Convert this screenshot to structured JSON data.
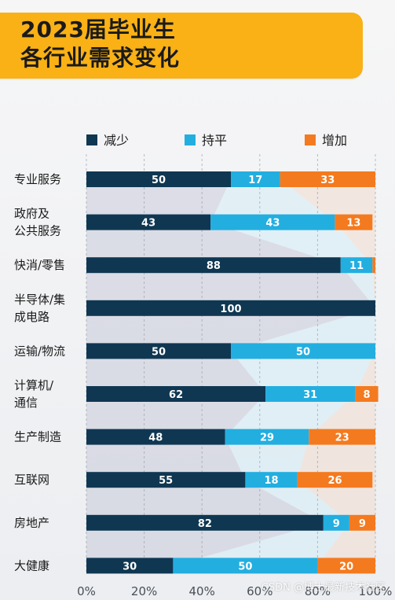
{
  "header": {
    "title_line1": "2023届毕业生",
    "title_line2": "各行业需求变化"
  },
  "colors": {
    "decrease": "#0f3752",
    "flat": "#23aee0",
    "increase": "#f47a1f",
    "banner": "#f9b115"
  },
  "chart_data": {
    "type": "bar",
    "orientation": "horizontal-stacked-percent",
    "title": "2023届毕业生各行业需求变化",
    "categories": [
      "专业服务",
      "政府及公共服务",
      "快消/零售",
      "半导体/集成电路",
      "运输/物流",
      "计算机/通信",
      "生产制造",
      "互联网",
      "房地产",
      "大健康"
    ],
    "category_lines": [
      [
        "专业服务"
      ],
      [
        "政府及",
        "公共服务"
      ],
      [
        "快消/零售"
      ],
      [
        "半导体/集",
        "成电路"
      ],
      [
        "运输/物流"
      ],
      [
        "计算机/",
        "通信"
      ],
      [
        "生产制造"
      ],
      [
        "互联网"
      ],
      [
        "房地产"
      ],
      [
        "大健康"
      ]
    ],
    "series": [
      {
        "name": "减少",
        "values": [
          50,
          43,
          88,
          100,
          50,
          62,
          48,
          55,
          82,
          30
        ]
      },
      {
        "name": "持平",
        "values": [
          17,
          43,
          11,
          0,
          50,
          31,
          29,
          18,
          9,
          50
        ]
      },
      {
        "name": "增加",
        "values": [
          33,
          13,
          1,
          0,
          0,
          8,
          23,
          26,
          9,
          20
        ]
      }
    ],
    "labels": [
      [
        "50",
        "17",
        "33"
      ],
      [
        "43",
        "43",
        "13"
      ],
      [
        "88",
        "11",
        ""
      ],
      [
        "100",
        "",
        ""
      ],
      [
        "50",
        "50",
        ""
      ],
      [
        "62",
        "31",
        "8"
      ],
      [
        "48",
        "29",
        "23"
      ],
      [
        "55",
        "18",
        "26"
      ],
      [
        "82",
        "9",
        "9"
      ],
      [
        "30",
        "50",
        "20"
      ]
    ],
    "xlim": [
      0,
      100
    ],
    "xticks": [
      "0%",
      "20%",
      "40%",
      "60%",
      "80%",
      "100%"
    ],
    "grid": true,
    "legend_position": "top"
  },
  "watermark": "CSDN @博士最新技术社区"
}
